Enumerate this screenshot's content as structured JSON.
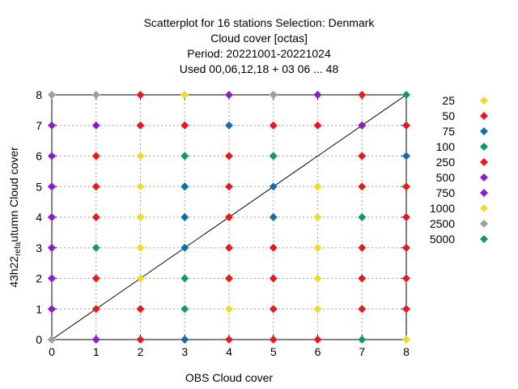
{
  "chart_data": {
    "type": "scatter",
    "title_lines": [
      "Scatterplot for   16 stations Selection: Denmark",
      "Cloud cover [octas]",
      "Period: 20221001-20221024",
      "Used  00,06,12,18  + 03 06 ... 48"
    ],
    "xlabel": "OBS Cloud cover",
    "ylabel_prefix": "43h22",
    "ylabel_sub": "ref",
    "ylabel_suffix": "utumn Cloud cover",
    "xlim": [
      0,
      8
    ],
    "ylim": [
      0,
      8
    ],
    "xticks": [
      "0",
      "1",
      "2",
      "3",
      "4",
      "5",
      "6",
      "7",
      "8"
    ],
    "yticks": [
      "0",
      "1",
      "2",
      "3",
      "4",
      "5",
      "6",
      "7",
      "8"
    ],
    "grid": true,
    "diagonal": true,
    "legend_position": "right",
    "series": [
      {
        "name": "25",
        "color": "#ecdc2c",
        "points": [
          [
            6,
            8
          ],
          [
            6,
            5
          ],
          [
            6,
            4
          ],
          [
            6,
            3
          ],
          [
            6,
            2
          ],
          [
            6,
            1
          ],
          [
            6,
            0
          ],
          [
            8,
            0
          ],
          [
            4,
            1
          ],
          [
            4,
            2
          ],
          [
            4,
            3
          ],
          [
            4,
            4
          ],
          [
            3,
            8
          ],
          [
            2,
            6
          ],
          [
            2,
            5
          ],
          [
            2,
            4
          ],
          [
            2,
            3
          ],
          [
            2,
            2
          ],
          [
            2,
            1
          ],
          [
            2,
            0
          ]
        ]
      },
      {
        "name": "50",
        "color": "#e41a1c",
        "points": [
          [
            2,
            8
          ],
          [
            2,
            7
          ],
          [
            1,
            6
          ],
          [
            1,
            5
          ],
          [
            1,
            4
          ],
          [
            1,
            2
          ],
          [
            1,
            1
          ],
          [
            1,
            0
          ],
          [
            2,
            0
          ],
          [
            3,
            7
          ],
          [
            3,
            5
          ],
          [
            3,
            6
          ],
          [
            4,
            6
          ],
          [
            4,
            5
          ],
          [
            4,
            4
          ],
          [
            4,
            3
          ],
          [
            4,
            2
          ],
          [
            4,
            0
          ],
          [
            5,
            8
          ],
          [
            5,
            7
          ],
          [
            5,
            6
          ],
          [
            5,
            3
          ],
          [
            5,
            2
          ],
          [
            5,
            1
          ],
          [
            5,
            0
          ],
          [
            6,
            7
          ],
          [
            7,
            8
          ],
          [
            7,
            7
          ],
          [
            7,
            6
          ],
          [
            7,
            5
          ],
          [
            7,
            3
          ],
          [
            7,
            2
          ],
          [
            7,
            1
          ],
          [
            8,
            5
          ],
          [
            8,
            4
          ],
          [
            8,
            3
          ],
          [
            8,
            2
          ],
          [
            8,
            1
          ],
          [
            8,
            7
          ],
          [
            6,
            0
          ],
          [
            0,
            5
          ],
          [
            0,
            4
          ],
          [
            0,
            3
          ],
          [
            0,
            2
          ],
          [
            0,
            1
          ],
          [
            0,
            0
          ],
          [
            2,
            1
          ],
          [
            3,
            0
          ]
        ]
      },
      {
        "name": "75",
        "color": "#0f6fae",
        "points": [
          [
            3,
            5
          ],
          [
            3,
            4
          ],
          [
            3,
            3
          ],
          [
            3,
            0
          ],
          [
            4,
            7
          ],
          [
            5,
            5
          ],
          [
            5,
            4
          ],
          [
            8,
            6
          ]
        ]
      },
      {
        "name": "100",
        "color": "#0f9a6e",
        "points": [
          [
            1,
            3
          ],
          [
            3,
            6
          ],
          [
            3,
            2
          ],
          [
            3,
            1
          ],
          [
            5,
            6
          ],
          [
            7,
            4
          ],
          [
            7,
            0
          ],
          [
            8,
            8
          ]
        ]
      },
      {
        "name": "500",
        "color": "#8a1ec8",
        "points": [
          [
            0,
            7
          ],
          [
            0,
            6
          ],
          [
            0,
            5
          ],
          [
            0,
            4
          ],
          [
            0,
            3
          ],
          [
            0,
            2
          ],
          [
            1,
            7
          ],
          [
            1,
            0
          ],
          [
            4,
            8
          ],
          [
            6,
            8
          ],
          [
            7,
            7
          ],
          [
            0,
            1
          ]
        ]
      },
      {
        "name": "2500",
        "color": "#a0a0a0",
        "points": [
          [
            0,
            8
          ],
          [
            1,
            8
          ],
          [
            5,
            8
          ],
          [
            0,
            0
          ]
        ]
      }
    ],
    "legend": [
      {
        "label": "25",
        "color": "#ecdc2c"
      },
      {
        "label": "50",
        "color": "#e41a1c"
      },
      {
        "label": "75",
        "color": "#0f6fae"
      },
      {
        "label": "100",
        "color": "#0f9a6e"
      },
      {
        "label": "250",
        "color": "#e41a1c"
      },
      {
        "label": "500",
        "color": "#8a1ec8"
      },
      {
        "label": "750",
        "color": "#8a1ec8"
      },
      {
        "label": "1000",
        "color": "#ecdc2c"
      },
      {
        "label": "2500",
        "color": "#a0a0a0"
      },
      {
        "label": "5000",
        "color": "#0f9a6e"
      }
    ]
  }
}
